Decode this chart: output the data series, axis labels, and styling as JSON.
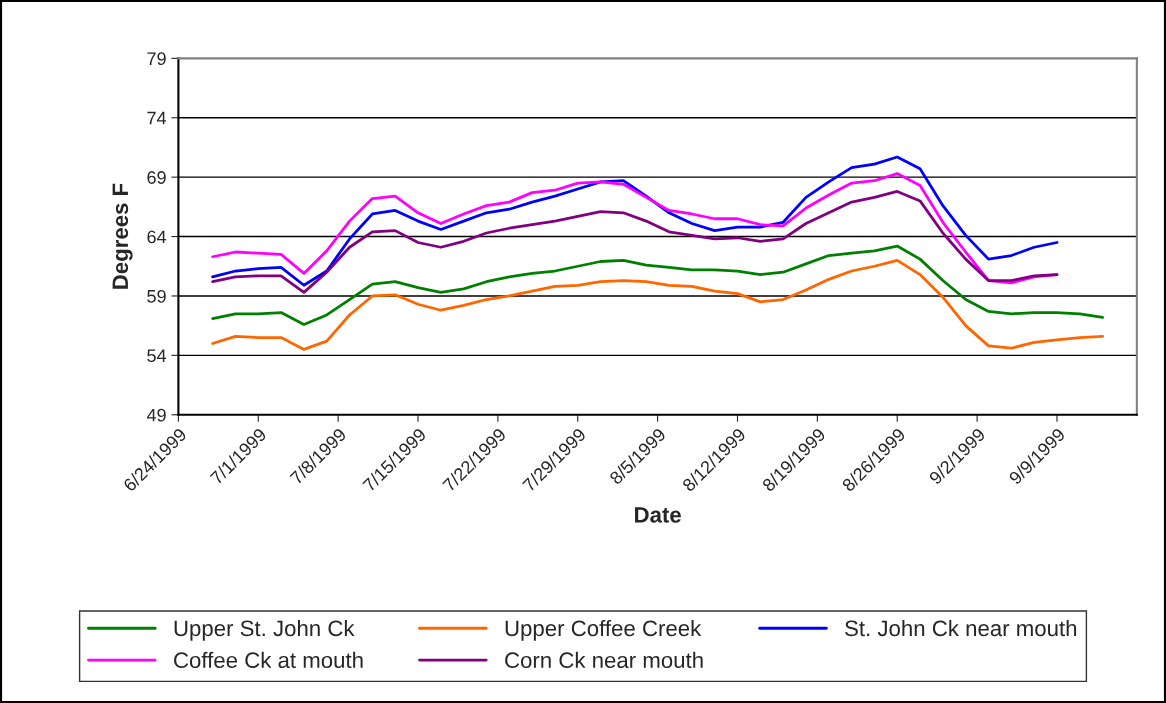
{
  "chart_data": {
    "type": "line",
    "xlabel": "Date",
    "ylabel": "Degrees F",
    "x": [
      "1999-06-27",
      "1999-06-29",
      "1999-07-01",
      "1999-07-03",
      "1999-07-05",
      "1999-07-07",
      "1999-07-09",
      "1999-07-11",
      "1999-07-13",
      "1999-07-15",
      "1999-07-17",
      "1999-07-19",
      "1999-07-21",
      "1999-07-23",
      "1999-07-25",
      "1999-07-27",
      "1999-07-29",
      "1999-07-31",
      "1999-08-02",
      "1999-08-04",
      "1999-08-06",
      "1999-08-08",
      "1999-08-10",
      "1999-08-12",
      "1999-08-14",
      "1999-08-16",
      "1999-08-18",
      "1999-08-20",
      "1999-08-22",
      "1999-08-24",
      "1999-08-26",
      "1999-08-28",
      "1999-08-30",
      "1999-09-01",
      "1999-09-03",
      "1999-09-05",
      "1999-09-07",
      "1999-09-09",
      "1999-09-11",
      "1999-09-13"
    ],
    "series": [
      {
        "name": "Upper St. John Ck",
        "color": "#008000",
        "values": [
          57.1,
          57.5,
          57.5,
          57.6,
          56.6,
          57.4,
          58.7,
          60.0,
          60.2,
          59.7,
          59.3,
          59.6,
          60.2,
          60.6,
          60.9,
          61.1,
          61.5,
          61.9,
          62.0,
          61.6,
          61.4,
          61.2,
          61.2,
          61.1,
          60.8,
          61.0,
          61.7,
          62.4,
          62.6,
          62.8,
          63.2,
          62.1,
          60.3,
          58.7,
          57.7,
          57.5,
          57.6,
          57.6,
          57.5,
          57.2
        ]
      },
      {
        "name": "Upper Coffee Creek",
        "color": "#ff6600",
        "values": [
          55.0,
          55.6,
          55.5,
          55.5,
          54.5,
          55.2,
          57.4,
          59.0,
          59.1,
          58.3,
          57.8,
          58.2,
          58.7,
          59.0,
          59.4,
          59.8,
          59.9,
          60.2,
          60.3,
          60.2,
          59.9,
          59.8,
          59.4,
          59.2,
          58.5,
          58.7,
          59.5,
          60.4,
          61.1,
          61.5,
          62.0,
          60.8,
          58.9,
          56.5,
          54.8,
          54.6,
          55.1,
          55.3,
          55.5,
          55.6
        ]
      },
      {
        "name": "St. John Ck near mouth",
        "color": "#0000ff",
        "values": [
          60.6,
          61.1,
          61.3,
          61.4,
          59.9,
          61.1,
          63.8,
          65.9,
          66.2,
          65.3,
          64.6,
          65.3,
          66.0,
          66.3,
          66.9,
          67.4,
          68.0,
          68.6,
          68.7,
          67.4,
          66.0,
          65.1,
          64.5,
          64.8,
          64.8,
          65.2,
          67.3,
          68.6,
          69.8,
          70.1,
          70.7,
          69.7,
          66.6,
          64.1,
          62.1,
          62.4,
          63.1,
          63.5,
          null,
          null
        ]
      },
      {
        "name": "Coffee Ck at mouth",
        "color": "#ff00ff",
        "values": [
          62.3,
          62.7,
          62.6,
          62.5,
          60.9,
          62.8,
          65.3,
          67.2,
          67.4,
          66.0,
          65.1,
          65.9,
          66.6,
          66.9,
          67.7,
          67.9,
          68.5,
          68.6,
          68.4,
          67.3,
          66.2,
          65.9,
          65.5,
          65.5,
          65.0,
          64.9,
          66.4,
          67.5,
          68.5,
          68.7,
          69.3,
          68.3,
          65.2,
          62.7,
          60.3,
          60.1,
          60.6,
          60.8,
          null,
          null
        ]
      },
      {
        "name": "Corn Ck near mouth",
        "color": "#800080",
        "values": [
          60.2,
          60.6,
          60.7,
          60.7,
          59.3,
          61.0,
          63.1,
          64.4,
          64.5,
          63.5,
          63.1,
          63.6,
          64.3,
          64.7,
          65.0,
          65.3,
          65.7,
          66.1,
          66.0,
          65.3,
          64.4,
          64.1,
          63.8,
          63.9,
          63.6,
          63.8,
          65.1,
          66.0,
          66.9,
          67.3,
          67.8,
          67.0,
          64.3,
          62.1,
          60.3,
          60.3,
          60.7,
          60.8,
          null,
          null
        ]
      }
    ],
    "xlim": [
      "1999-06-24",
      "1999-09-16"
    ],
    "xticks": [
      {
        "value": "1999-06-24",
        "label": "6/24/1999"
      },
      {
        "value": "1999-07-01",
        "label": "7/1/1999"
      },
      {
        "value": "1999-07-08",
        "label": "7/8/1999"
      },
      {
        "value": "1999-07-15",
        "label": "7/15/1999"
      },
      {
        "value": "1999-07-22",
        "label": "7/22/1999"
      },
      {
        "value": "1999-07-29",
        "label": "7/29/1999"
      },
      {
        "value": "1999-08-05",
        "label": "8/5/1999"
      },
      {
        "value": "1999-08-12",
        "label": "8/12/1999"
      },
      {
        "value": "1999-08-19",
        "label": "8/19/1999"
      },
      {
        "value": "1999-08-26",
        "label": "8/26/1999"
      },
      {
        "value": "1999-09-02",
        "label": "9/2/1999"
      },
      {
        "value": "1999-09-09",
        "label": "9/9/1999"
      }
    ],
    "ylim": [
      49,
      79
    ],
    "yticks": [
      49,
      54,
      59,
      64,
      69,
      74,
      79
    ],
    "grid": "y",
    "legend": "bottom",
    "marker": "none",
    "line_style": "solid"
  }
}
